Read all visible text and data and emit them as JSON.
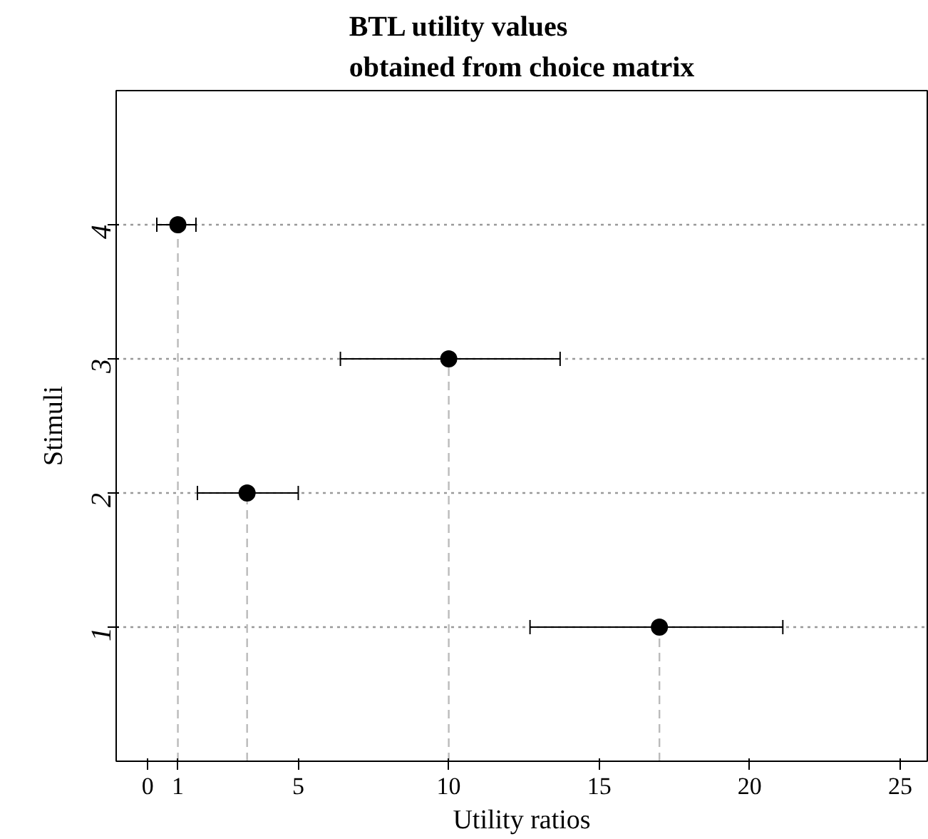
{
  "chart_data": {
    "type": "scatter",
    "orientation": "horizontal",
    "title": "BTL utility values\nobtained from choice matrix",
    "xlabel": "Utility ratios",
    "ylabel": "Stimuli",
    "categories": [
      "4",
      "3",
      "2",
      "1"
    ],
    "values": [
      1.0,
      10.0,
      3.3,
      17.0
    ],
    "errors": [
      [
        0.3,
        1.6
      ],
      [
        6.4,
        13.7
      ],
      [
        1.65,
        5.0
      ],
      [
        12.7,
        21.1
      ]
    ],
    "color": "#000000",
    "marker": "circle",
    "grid": "y",
    "ref_lines": [
      {
        "axis": "x",
        "value": 1.0,
        "color": "#bbbbbb",
        "line_style": "dashed"
      },
      {
        "axis": "x",
        "value": 10.0,
        "color": "#bbbbbb",
        "line_style": "dashed"
      },
      {
        "axis": "x",
        "value": 3.3,
        "color": "#bbbbbb",
        "line_style": "dashed"
      },
      {
        "axis": "x",
        "value": 17.0,
        "color": "#bbbbbb",
        "line_style": "dashed"
      }
    ],
    "xlim": [
      -1.05,
      25.9
    ],
    "xticks": [
      0,
      1,
      5,
      10,
      15,
      20,
      25
    ]
  }
}
